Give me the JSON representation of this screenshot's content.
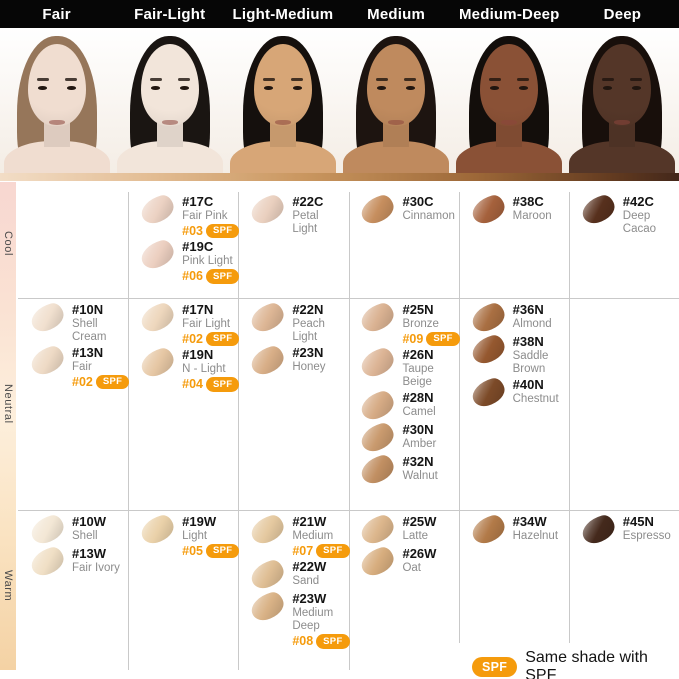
{
  "header": {
    "categories": [
      "Fair",
      "Fair-Light",
      "Light-Medium",
      "Medium",
      "Medium-Deep",
      "Deep"
    ]
  },
  "faces": [
    {
      "label": "Fair",
      "skin": "#f0ddd0",
      "hair": "#96765a"
    },
    {
      "label": "Fair-Light",
      "skin": "#f2e5da",
      "hair": "#1a1512"
    },
    {
      "label": "Light-Medium",
      "skin": "#d7a677",
      "hair": "#15100d"
    },
    {
      "label": "Medium",
      "skin": "#bf8a5e",
      "hair": "#1d1410"
    },
    {
      "label": "Medium-Deep",
      "skin": "#8a5136",
      "hair": "#130e0b"
    },
    {
      "label": "Deep",
      "skin": "#543628",
      "hair": "#180f0b"
    }
  ],
  "tones": [
    {
      "label": "Cool"
    },
    {
      "label": "Neutral"
    },
    {
      "label": "Warm"
    }
  ],
  "grid": {
    "rows": [
      {
        "tone": "Cool",
        "cells": [
          [],
          [
            {
              "code": "#17C",
              "name": "Fair Pink",
              "spf": "#03",
              "color": "#ecd2c3"
            },
            {
              "code": "#19C",
              "name": "Pink Light",
              "spf": "#06",
              "color": "#eccfc0"
            }
          ],
          [
            {
              "code": "#22C",
              "name": "Petal Light",
              "spf": null,
              "color": "#ead0bf"
            }
          ],
          [
            {
              "code": "#30C",
              "name": "Cinnamon",
              "spf": null,
              "color": "#c68e5e"
            }
          ],
          [
            {
              "code": "#38C",
              "name": "Maroon",
              "spf": null,
              "color": "#a5613c"
            }
          ],
          [
            {
              "code": "#42C",
              "name": "Deep Cacao",
              "spf": null,
              "color": "#57301d"
            }
          ]
        ]
      },
      {
        "tone": "Neutral",
        "cells": [
          [
            {
              "code": "#10N",
              "name": "Shell Cream",
              "spf": null,
              "color": "#f1e0cf"
            },
            {
              "code": "#13N",
              "name": "Fair",
              "spf": "#02",
              "color": "#eedac5"
            }
          ],
          [
            {
              "code": "#17N",
              "name": "Fair Light",
              "spf": "#02",
              "color": "#eed7bd"
            },
            {
              "code": "#19N",
              "name": "N - Light",
              "spf": "#04",
              "color": "#e6c7a4"
            }
          ],
          [
            {
              "code": "#22N",
              "name": "Peach Light",
              "spf": null,
              "color": "#ddb695"
            },
            {
              "code": "#23N",
              "name": "Honey",
              "spf": null,
              "color": "#d8ae87"
            }
          ],
          [
            {
              "code": "#25N",
              "name": "Bronze",
              "spf": "#09",
              "color": "#dab292"
            },
            {
              "code": "#26N",
              "name": "Taupe Beige",
              "spf": null,
              "color": "#dcb495"
            },
            {
              "code": "#28N",
              "name": "Camel",
              "spf": null,
              "color": "#d6ab85"
            },
            {
              "code": "#30N",
              "name": "Amber",
              "spf": null,
              "color": "#c99a6e"
            },
            {
              "code": "#32N",
              "name": "Walnut",
              "spf": null,
              "color": "#c18f62"
            }
          ],
          [
            {
              "code": "#36N",
              "name": "Almond",
              "spf": null,
              "color": "#a96f42"
            },
            {
              "code": "#38N",
              "name": "Saddle Brown",
              "spf": null,
              "color": "#95582f"
            },
            {
              "code": "#40N",
              "name": "Chestnut",
              "spf": null,
              "color": "#7c4a28"
            }
          ],
          []
        ]
      },
      {
        "tone": "Warm",
        "cells": [
          [
            {
              "code": "#10W",
              "name": "Shell",
              "spf": null,
              "color": "#f3e7d5"
            },
            {
              "code": "#13W",
              "name": "Fair Ivory",
              "spf": null,
              "color": "#f0dfc5"
            }
          ],
          [
            {
              "code": "#19W",
              "name": "Light",
              "spf": "#05",
              "color": "#ead1a9"
            }
          ],
          [
            {
              "code": "#21W",
              "name": "Medium",
              "spf": "#07",
              "color": "#e5c9a0"
            },
            {
              "code": "#22W",
              "name": "Sand",
              "spf": null,
              "color": "#dfbe94"
            },
            {
              "code": "#23W",
              "name": "Medium Deep",
              "spf": "#08",
              "color": "#d9b286"
            }
          ],
          [
            {
              "code": "#25W",
              "name": "Latte",
              "spf": null,
              "color": "#dcb68c"
            },
            {
              "code": "#26W",
              "name": "Oat",
              "spf": null,
              "color": "#d7ad7e"
            }
          ],
          [
            {
              "code": "#34W",
              "name": "Hazelnut",
              "spf": null,
              "color": "#b27a48"
            }
          ],
          [
            {
              "code": "#45N",
              "name": "Espresso",
              "spf": null,
              "color": "#44291c"
            }
          ]
        ]
      }
    ]
  },
  "legend": {
    "badge": "SPF",
    "text": "Same shade with SPF"
  },
  "accents": {
    "orange": "#f59b0c",
    "grid_line": "#c9c9c9",
    "name_gray": "#8c8c8c",
    "header_bg": "#060606"
  }
}
